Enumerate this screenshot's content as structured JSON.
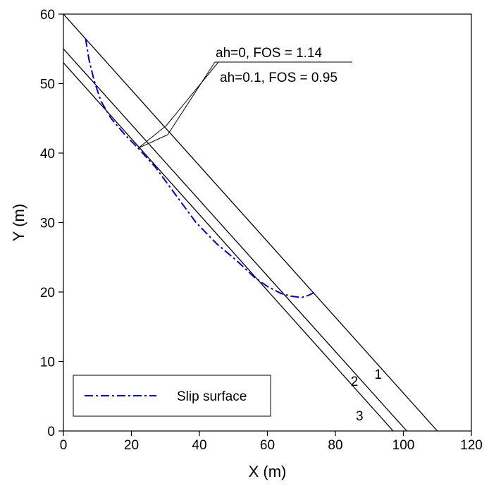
{
  "chart_data": {
    "type": "line",
    "title": "",
    "xlabel": "X (m)",
    "ylabel": "Y (m)",
    "xlim": [
      0,
      120
    ],
    "ylim": [
      0,
      60
    ],
    "xticks": [
      0,
      20,
      40,
      60,
      80,
      100,
      120
    ],
    "yticks": [
      0,
      10,
      20,
      30,
      40,
      50,
      60
    ],
    "grid": false,
    "legend_position": "bottom-left",
    "boundary_lines": [
      {
        "label": "1",
        "points": [
          [
            0,
            60
          ],
          [
            110,
            0
          ]
        ],
        "color": "#000000"
      },
      {
        "label": "2",
        "points": [
          [
            0,
            55
          ],
          [
            101,
            0
          ]
        ],
        "color": "#000000"
      },
      {
        "label": "3",
        "points": [
          [
            0,
            53
          ],
          [
            97,
            0
          ]
        ],
        "color": "#000000"
      }
    ],
    "series": [
      {
        "name": "Slip surface",
        "style": "dash-dot",
        "color": "#0000cc",
        "x": [
          6.5,
          7.5,
          9,
          11,
          14,
          18,
          22,
          27,
          33,
          39,
          45,
          51,
          56,
          60,
          64,
          67,
          70,
          72,
          74
        ],
        "y": [
          56.5,
          53.5,
          50.5,
          47.5,
          45,
          42.7,
          40.7,
          38,
          34,
          30,
          27,
          24.5,
          22.2,
          20.8,
          19.8,
          19.4,
          19.2,
          19.5,
          20
        ]
      }
    ],
    "annotations": [
      {
        "text": "ah=0, FOS = 1.14",
        "anchor": [
          22,
          40.7
        ],
        "text_at": [
          44.5,
          55.6
        ]
      },
      {
        "text": "ah=0.1, FOS = 0.95",
        "anchor": [
          22,
          40.7
        ],
        "text_at": [
          46,
          51.3
        ]
      }
    ]
  }
}
